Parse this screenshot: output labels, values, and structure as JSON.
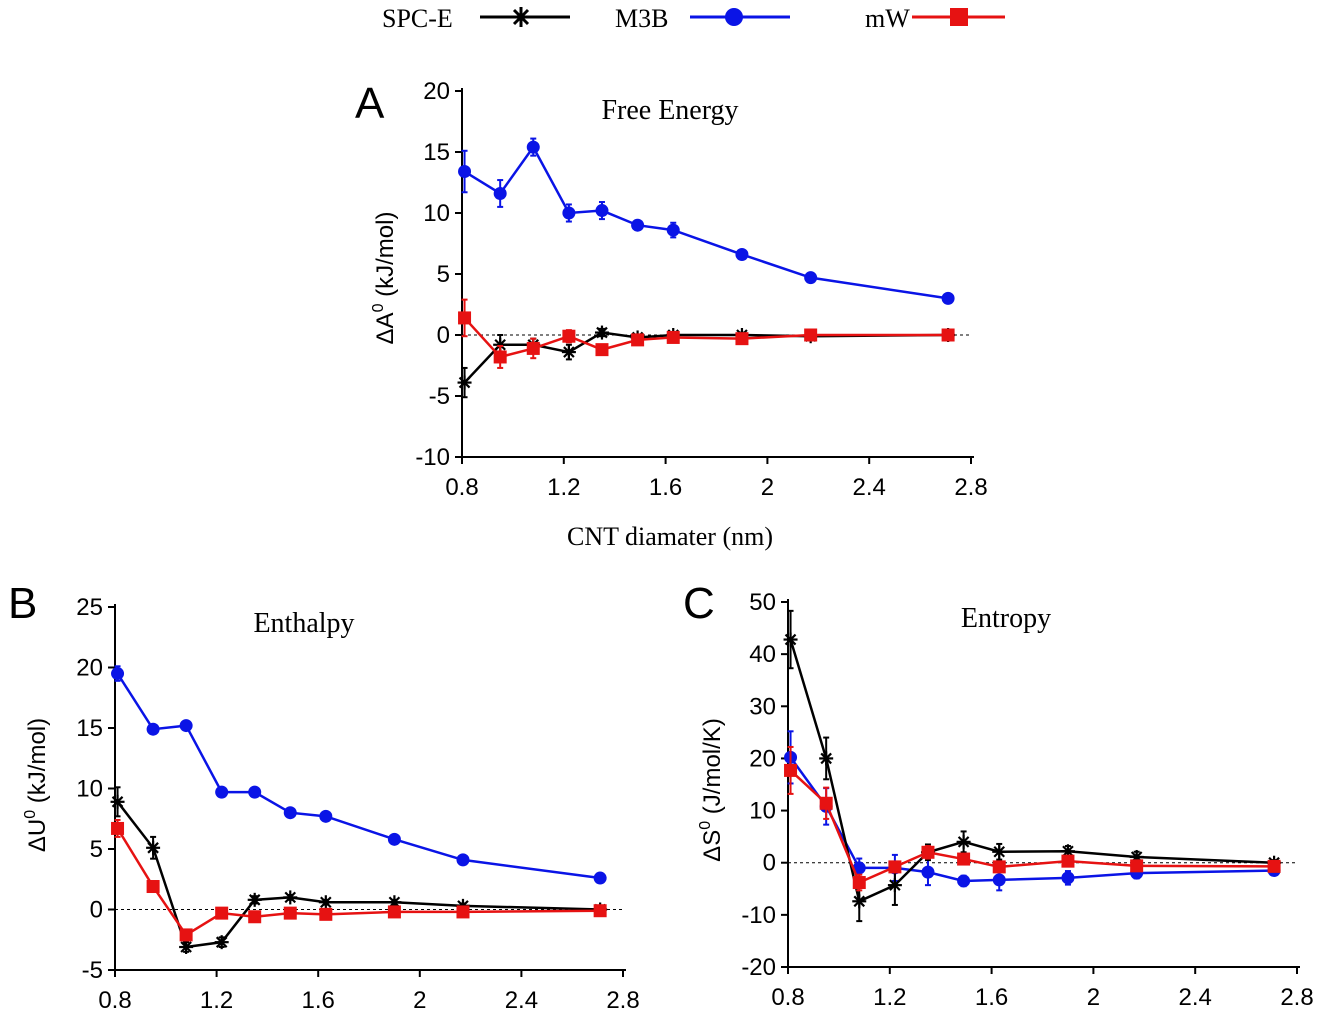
{
  "legend": {
    "entries": [
      {
        "label": "SPC-E",
        "color": "#000000",
        "marker": "asterisk"
      },
      {
        "label": "M3B",
        "color": "#0a14e6",
        "marker": "circle"
      },
      {
        "label": "mW",
        "color": "#e61212",
        "marker": "square"
      }
    ]
  },
  "chart_data": [
    {
      "panel": "A",
      "type": "line",
      "title": "Free Energy",
      "xlabel": "CNT diamater (nm)",
      "ylabel": "ΔA⁰ (kJ/mol)",
      "xlim": [
        0.8,
        2.8
      ],
      "ylim": [
        -10,
        20
      ],
      "xticks": [
        "0.8",
        "1.2",
        "1.6",
        "2",
        "2.4",
        "2.8"
      ],
      "yticks": [
        "-10",
        "-5",
        "0",
        "5",
        "10",
        "15",
        "20"
      ],
      "zero_line": true,
      "x": [
        0.81,
        0.95,
        1.08,
        1.22,
        1.35,
        1.49,
        1.63,
        1.9,
        2.17,
        2.71
      ],
      "series": [
        {
          "name": "SPC-E",
          "values": [
            -3.9,
            -0.8,
            -0.8,
            -1.4,
            0.2,
            -0.2,
            0.0,
            0.0,
            -0.1,
            0.0
          ],
          "err": [
            1.2,
            0.8,
            0.5,
            0.6,
            0.3,
            0.2,
            0.2,
            0.2,
            0.2,
            0.2
          ]
        },
        {
          "name": "M3B",
          "values": [
            13.4,
            11.6,
            15.4,
            10.0,
            10.2,
            9.0,
            8.6,
            6.6,
            4.7,
            3.0
          ],
          "err": [
            1.7,
            1.1,
            0.7,
            0.7,
            0.7,
            0.3,
            0.6,
            0.3,
            0.2,
            0.2
          ]
        },
        {
          "name": "mW",
          "values": [
            1.4,
            -1.8,
            -1.1,
            -0.1,
            -1.2,
            -0.4,
            -0.2,
            -0.3,
            0.0,
            0.0
          ],
          "err": [
            1.5,
            0.9,
            0.8,
            0.5,
            0.3,
            0.2,
            0.2,
            0.2,
            0.1,
            0.1
          ]
        }
      ]
    },
    {
      "panel": "B",
      "type": "line",
      "title": "Enthalpy",
      "xlabel": "",
      "ylabel": "ΔU⁰ (kJ/mol)",
      "xlim": [
        0.8,
        2.8
      ],
      "ylim": [
        -5,
        25
      ],
      "xticks": [
        "0.8",
        "1.2",
        "1.6",
        "2",
        "2.4",
        "2.8"
      ],
      "yticks": [
        "-5",
        "0",
        "5",
        "10",
        "15",
        "20",
        "25"
      ],
      "zero_line": true,
      "x": [
        0.81,
        0.95,
        1.08,
        1.22,
        1.35,
        1.49,
        1.63,
        1.9,
        2.17,
        2.71
      ],
      "series": [
        {
          "name": "SPC-E",
          "values": [
            8.9,
            5.1,
            -3.1,
            -2.7,
            0.8,
            1.0,
            0.6,
            0.6,
            0.3,
            0.0
          ],
          "err": [
            1.2,
            0.9,
            0.4,
            0.4,
            0.3,
            0.2,
            0.2,
            0.2,
            0.2,
            0.2
          ]
        },
        {
          "name": "M3B",
          "values": [
            19.5,
            14.9,
            15.2,
            9.7,
            9.7,
            8.0,
            7.7,
            5.8,
            4.1,
            2.6
          ],
          "err": [
            0.6,
            0.3,
            0.3,
            0.2,
            0.2,
            0.2,
            0.2,
            0.2,
            0.2,
            0.2
          ]
        },
        {
          "name": "mW",
          "values": [
            6.7,
            1.9,
            -2.1,
            -0.3,
            -0.6,
            -0.3,
            -0.4,
            -0.2,
            -0.2,
            -0.1
          ],
          "err": [
            0.7,
            0.3,
            0.3,
            0.2,
            0.2,
            0.2,
            0.2,
            0.2,
            0.2,
            0.2
          ]
        }
      ]
    },
    {
      "panel": "C",
      "type": "line",
      "title": "Entropy",
      "xlabel": "",
      "ylabel": "ΔS⁰ (J/mol/K)",
      "xlim": [
        0.8,
        2.8
      ],
      "ylim": [
        -20,
        50
      ],
      "xticks": [
        "0.8",
        "1.2",
        "1.6",
        "2",
        "2.4",
        "2.8"
      ],
      "yticks": [
        "-20",
        "-10",
        "0",
        "10",
        "20",
        "30",
        "40",
        "50"
      ],
      "zero_line": true,
      "x": [
        0.81,
        0.95,
        1.08,
        1.22,
        1.35,
        1.49,
        1.63,
        1.9,
        2.17,
        2.71
      ],
      "series": [
        {
          "name": "SPC-E",
          "values": [
            42.8,
            20.0,
            -7.4,
            -4.3,
            2.0,
            4.0,
            2.1,
            2.2,
            1.1,
            0.0
          ],
          "err": [
            5.5,
            4.0,
            3.8,
            3.8,
            1.5,
            2.0,
            1.5,
            1.0,
            1.0,
            0.5
          ]
        },
        {
          "name": "M3B",
          "values": [
            20.2,
            10.8,
            -1.0,
            -1.0,
            -1.8,
            -3.5,
            -3.3,
            -2.9,
            -2.0,
            -1.5
          ],
          "err": [
            5.0,
            3.5,
            1.8,
            2.5,
            2.5,
            1.0,
            2.0,
            1.3,
            1.0,
            0.6
          ]
        },
        {
          "name": "mW",
          "values": [
            17.7,
            11.4,
            -3.8,
            -0.8,
            2.0,
            0.7,
            -0.8,
            0.3,
            -0.6,
            -0.7
          ],
          "err": [
            4.5,
            3.0,
            1.5,
            1.0,
            1.2,
            0.8,
            0.8,
            0.8,
            0.5,
            0.4
          ]
        }
      ]
    }
  ]
}
